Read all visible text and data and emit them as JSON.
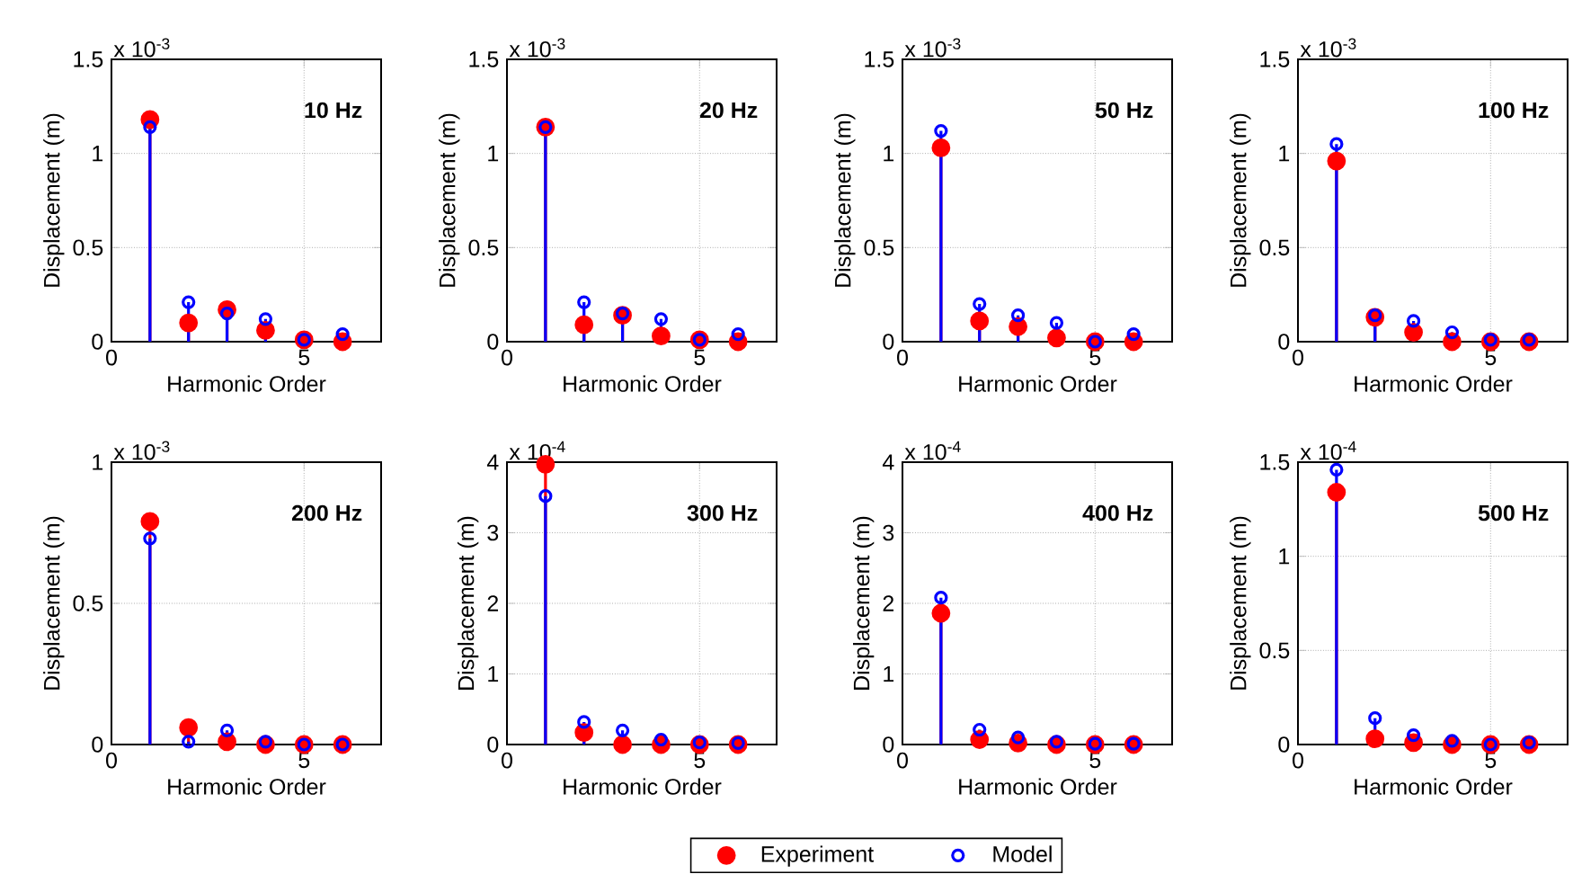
{
  "chart_data": [
    {
      "type": "lollipop",
      "title": "10 Hz",
      "xlabel": "Harmonic Order",
      "ylabel": "Displacement (m)",
      "annotations": [
        "x 10$^{-3}$"
      ],
      "x": [
        1,
        2,
        3,
        4,
        5,
        6
      ],
      "xlim": [
        0,
        7
      ],
      "xticks": [
        0,
        5
      ],
      "ylim": [
        0,
        1.5
      ],
      "yticks": [
        0,
        0.5,
        1,
        1.5
      ],
      "grid": true,
      "marker": "circle",
      "series": [
        {
          "color": "#ff0000",
          "values": [
            1.18,
            0.1,
            0.17,
            0.06,
            0.01,
            0.0
          ]
        },
        {
          "color": "#0000ff",
          "values": [
            1.14,
            0.21,
            0.15,
            0.12,
            0.01,
            0.04
          ]
        }
      ]
    },
    {
      "type": "lollipop",
      "title": "20 Hz",
      "xlabel": "Harmonic Order",
      "ylabel": "Displacement (m)",
      "annotations": [
        "x 10$^{-3}$"
      ],
      "x": [
        1,
        2,
        3,
        4,
        5,
        6
      ],
      "xlim": [
        0,
        7
      ],
      "xticks": [
        0,
        5
      ],
      "ylim": [
        0,
        1.5
      ],
      "yticks": [
        0,
        0.5,
        1,
        1.5
      ],
      "grid": true,
      "marker": "circle",
      "series": [
        {
          "color": "#ff0000",
          "values": [
            1.14,
            0.09,
            0.14,
            0.03,
            0.01,
            0.0
          ]
        },
        {
          "color": "#0000ff",
          "values": [
            1.14,
            0.21,
            0.15,
            0.12,
            0.01,
            0.04
          ]
        }
      ]
    },
    {
      "type": "lollipop",
      "title": "50 Hz",
      "xlabel": "Harmonic Order",
      "ylabel": "Displacement (m)",
      "annotations": [
        "x 10$^{-3}$"
      ],
      "x": [
        1,
        2,
        3,
        4,
        5,
        6
      ],
      "xlim": [
        0,
        7
      ],
      "xticks": [
        0,
        5
      ],
      "ylim": [
        0,
        1.5
      ],
      "yticks": [
        0,
        0.5,
        1,
        1.5
      ],
      "grid": true,
      "marker": "circle",
      "series": [
        {
          "color": "#ff0000",
          "values": [
            1.03,
            0.11,
            0.08,
            0.02,
            0.0,
            0.0
          ]
        },
        {
          "color": "#0000ff",
          "values": [
            1.12,
            0.2,
            0.14,
            0.1,
            0.0,
            0.04
          ]
        }
      ]
    },
    {
      "type": "lollipop",
      "title": "100 Hz",
      "xlabel": "Harmonic Order",
      "ylabel": "Displacement (m)",
      "annotations": [
        "x 10$^{-3}$"
      ],
      "x": [
        1,
        2,
        3,
        4,
        5,
        6
      ],
      "xlim": [
        0,
        7
      ],
      "xticks": [
        0,
        5
      ],
      "ylim": [
        0,
        1.5
      ],
      "yticks": [
        0,
        0.5,
        1,
        1.5
      ],
      "grid": true,
      "marker": "circle",
      "series": [
        {
          "color": "#ff0000",
          "values": [
            0.96,
            0.13,
            0.05,
            0.0,
            0.0,
            0.0
          ]
        },
        {
          "color": "#0000ff",
          "values": [
            1.05,
            0.14,
            0.11,
            0.05,
            0.01,
            0.01
          ]
        }
      ]
    },
    {
      "type": "lollipop",
      "title": "200 Hz",
      "xlabel": "Harmonic Order",
      "ylabel": "Displacement (m)",
      "annotations": [
        "x 10$^{-3}$"
      ],
      "x": [
        1,
        2,
        3,
        4,
        5,
        6
      ],
      "xlim": [
        0,
        7
      ],
      "xticks": [
        0,
        5
      ],
      "ylim": [
        0,
        1
      ],
      "yticks": [
        0,
        0.5,
        1
      ],
      "grid": true,
      "marker": "circle",
      "series": [
        {
          "color": "#ff0000",
          "values": [
            0.79,
            0.06,
            0.01,
            0.0,
            0.0,
            0.0
          ]
        },
        {
          "color": "#0000ff",
          "values": [
            0.73,
            0.01,
            0.05,
            0.01,
            0.0,
            0.0
          ]
        }
      ]
    },
    {
      "type": "lollipop",
      "title": "300 Hz",
      "xlabel": "Harmonic Order",
      "ylabel": "Displacement (m)",
      "annotations": [
        "x 10$^{-4}$"
      ],
      "x": [
        1,
        2,
        3,
        4,
        5,
        6
      ],
      "xlim": [
        0,
        7
      ],
      "xticks": [
        0,
        5
      ],
      "ylim": [
        0,
        4
      ],
      "yticks": [
        0,
        1,
        2,
        3,
        4
      ],
      "grid": true,
      "marker": "circle",
      "legend": "bottom",
      "series": [
        {
          "name": "Experiment",
          "color": "#ff0000",
          "values": [
            3.97,
            0.17,
            0.0,
            0.0,
            0.0,
            0.0
          ]
        },
        {
          "name": "Model",
          "color": "#0000ff",
          "values": [
            3.52,
            0.32,
            0.2,
            0.07,
            0.03,
            0.02
          ]
        }
      ]
    },
    {
      "type": "lollipop",
      "title": "400 Hz",
      "xlabel": "Harmonic Order",
      "ylabel": "Displacement (m)",
      "annotations": [
        "x 10$^{-4}$"
      ],
      "x": [
        1,
        2,
        3,
        4,
        5,
        6
      ],
      "xlim": [
        0,
        7
      ],
      "xticks": [
        0,
        5
      ],
      "ylim": [
        0,
        4
      ],
      "yticks": [
        0,
        1,
        2,
        3,
        4
      ],
      "grid": true,
      "marker": "circle",
      "series": [
        {
          "color": "#ff0000",
          "values": [
            1.86,
            0.07,
            0.02,
            0.0,
            0.0,
            0.0
          ]
        },
        {
          "color": "#0000ff",
          "values": [
            2.08,
            0.21,
            0.1,
            0.04,
            0.01,
            0.01
          ]
        }
      ]
    },
    {
      "type": "lollipop",
      "title": "500 Hz",
      "xlabel": "Harmonic Order",
      "ylabel": "Displacement (m)",
      "annotations": [
        "x 10$^{-4}$"
      ],
      "x": [
        1,
        2,
        3,
        4,
        5,
        6
      ],
      "xlim": [
        0,
        7
      ],
      "xticks": [
        0,
        5
      ],
      "ylim": [
        0,
        1.5
      ],
      "yticks": [
        0,
        0.5,
        1,
        1.5
      ],
      "grid": true,
      "marker": "circle",
      "series": [
        {
          "color": "#ff0000",
          "values": [
            1.34,
            0.03,
            0.01,
            0.0,
            0.0,
            0.0
          ]
        },
        {
          "color": "#0000ff",
          "values": [
            1.46,
            0.14,
            0.05,
            0.02,
            0.0,
            0.01
          ]
        }
      ]
    }
  ]
}
